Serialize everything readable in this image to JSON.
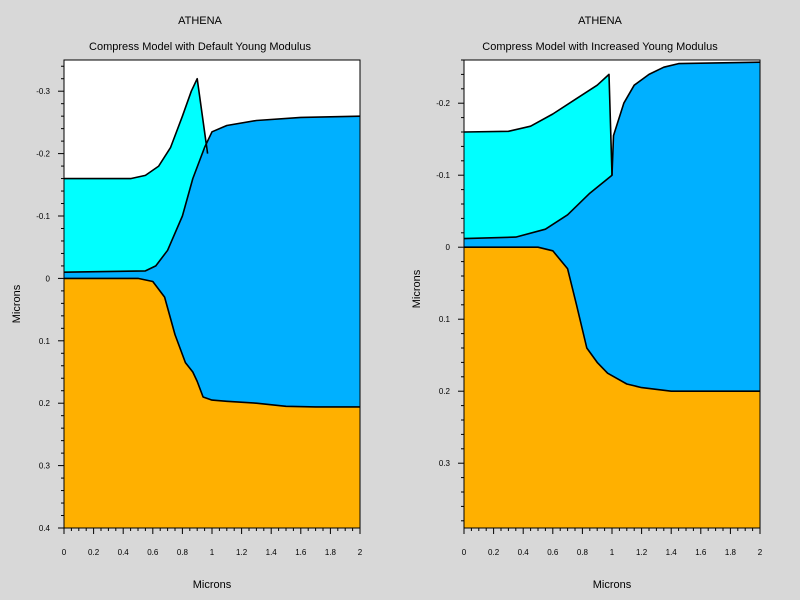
{
  "colors": {
    "background": "#d8d8d8",
    "plot_background": "#ffffff",
    "oxide": "#00ffff",
    "nitride": "#00b0ff",
    "silicon": "#ffb000",
    "boundary": "#000000"
  },
  "chart_data": [
    {
      "type": "area",
      "app": "ATHENA",
      "title": "Compress Model with Default Young Modulus",
      "xlabel": "Microns",
      "ylabel": "Microns",
      "xlim": [
        0,
        2
      ],
      "ylim": [
        -0.35,
        0.4
      ],
      "y_inverted": true,
      "x_ticks": [
        "0",
        "0.2",
        "0.4",
        "0.6",
        "0.8",
        "1",
        "1.2",
        "1.4",
        "1.6",
        "1.8",
        "2"
      ],
      "y_ticks": [
        "-0.3",
        "-0.2",
        "-0.1",
        "0",
        "0.1",
        "0.2",
        "0.3",
        "0.4"
      ],
      "y_tick_values": [
        -0.3,
        -0.2,
        -0.1,
        0,
        0.1,
        0.2,
        0.3,
        0.4
      ],
      "regions": [
        {
          "material": "silicon",
          "color": "#ffb000",
          "top": [
            [
              0,
              0.0
            ],
            [
              0.5,
              0.0
            ],
            [
              0.6,
              0.005
            ],
            [
              0.68,
              0.03
            ],
            [
              0.75,
              0.09
            ],
            [
              0.82,
              0.135
            ],
            [
              0.87,
              0.15
            ],
            [
              0.9,
              0.165
            ],
            [
              0.94,
              0.19
            ],
            [
              1.0,
              0.195
            ],
            [
              1.1,
              0.197
            ],
            [
              1.3,
              0.2
            ],
            [
              1.5,
              0.205
            ],
            [
              1.7,
              0.206
            ],
            [
              2.0,
              0.206
            ]
          ],
          "bottom": 0.4
        },
        {
          "material": "nitride",
          "color": "#00b0ff",
          "top": [
            [
              0,
              -0.01
            ],
            [
              0.55,
              -0.012
            ],
            [
              0.62,
              -0.02
            ],
            [
              0.7,
              -0.045
            ],
            [
              0.8,
              -0.1
            ],
            [
              0.87,
              -0.16
            ],
            [
              0.95,
              -0.21
            ],
            [
              1.0,
              -0.235
            ],
            [
              1.1,
              -0.245
            ],
            [
              1.3,
              -0.253
            ],
            [
              1.6,
              -0.258
            ],
            [
              2.0,
              -0.26
            ]
          ],
          "bottom": [
            [
              0,
              0.0
            ],
            [
              0.5,
              0.0
            ],
            [
              0.6,
              0.005
            ],
            [
              0.68,
              0.03
            ],
            [
              0.75,
              0.09
            ],
            [
              0.82,
              0.135
            ],
            [
              0.87,
              0.15
            ],
            [
              0.9,
              0.165
            ],
            [
              0.94,
              0.19
            ],
            [
              1.0,
              0.195
            ],
            [
              1.1,
              0.197
            ],
            [
              1.3,
              0.2
            ],
            [
              1.5,
              0.205
            ],
            [
              1.7,
              0.206
            ],
            [
              2.0,
              0.206
            ]
          ]
        },
        {
          "material": "oxide",
          "color": "#00ffff",
          "top": [
            [
              0,
              -0.16
            ],
            [
              0.45,
              -0.16
            ],
            [
              0.55,
              -0.165
            ],
            [
              0.64,
              -0.18
            ],
            [
              0.72,
              -0.21
            ],
            [
              0.8,
              -0.26
            ],
            [
              0.86,
              -0.3
            ],
            [
              0.9,
              -0.32
            ],
            [
              0.97,
              -0.2
            ]
          ],
          "bottom": [
            [
              0,
              -0.01
            ],
            [
              0.55,
              -0.012
            ],
            [
              0.62,
              -0.02
            ],
            [
              0.7,
              -0.045
            ],
            [
              0.8,
              -0.1
            ],
            [
              0.87,
              -0.16
            ],
            [
              0.95,
              -0.21
            ],
            [
              0.97,
              -0.2
            ]
          ]
        }
      ]
    },
    {
      "type": "area",
      "app": "ATHENA",
      "title": "Compress Model with Increased Young Modulus",
      "xlabel": "Microns",
      "ylabel": "Microns",
      "xlim": [
        0,
        2
      ],
      "ylim": [
        -0.26,
        0.39
      ],
      "y_inverted": true,
      "x_ticks": [
        "0",
        "0.2",
        "0.4",
        "0.6",
        "0.8",
        "1",
        "1.2",
        "1.4",
        "1.6",
        "1.8",
        "2"
      ],
      "y_ticks": [
        "-0.2",
        "-0.1",
        "0",
        "0.1",
        "0.2",
        "0.3"
      ],
      "y_tick_values": [
        -0.2,
        -0.1,
        0,
        0.1,
        0.2,
        0.3
      ],
      "regions": [
        {
          "material": "silicon",
          "color": "#ffb000",
          "top": [
            [
              0,
              0.0
            ],
            [
              0.5,
              0.0
            ],
            [
              0.6,
              0.005
            ],
            [
              0.7,
              0.03
            ],
            [
              0.76,
              0.08
            ],
            [
              0.83,
              0.14
            ],
            [
              0.9,
              0.16
            ],
            [
              0.97,
              0.175
            ],
            [
              1.1,
              0.19
            ],
            [
              1.2,
              0.195
            ],
            [
              1.4,
              0.2
            ],
            [
              1.6,
              0.2
            ],
            [
              1.8,
              0.2
            ],
            [
              2.0,
              0.2
            ]
          ],
          "bottom": 0.39
        },
        {
          "material": "nitride",
          "color": "#00b0ff",
          "top": [
            [
              0,
              -0.012
            ],
            [
              0.35,
              -0.014
            ],
            [
              0.55,
              -0.025
            ],
            [
              0.7,
              -0.045
            ],
            [
              0.85,
              -0.075
            ],
            [
              1.0,
              -0.1
            ],
            [
              1.01,
              -0.155
            ],
            [
              1.08,
              -0.2
            ],
            [
              1.15,
              -0.225
            ],
            [
              1.25,
              -0.24
            ],
            [
              1.35,
              -0.25
            ],
            [
              1.45,
              -0.255
            ],
            [
              2.0,
              -0.257
            ]
          ],
          "bottom": [
            [
              0,
              0.0
            ],
            [
              0.5,
              0.0
            ],
            [
              0.6,
              0.005
            ],
            [
              0.7,
              0.03
            ],
            [
              0.76,
              0.08
            ],
            [
              0.83,
              0.14
            ],
            [
              0.9,
              0.16
            ],
            [
              0.97,
              0.175
            ],
            [
              1.1,
              0.19
            ],
            [
              1.2,
              0.195
            ],
            [
              1.4,
              0.2
            ],
            [
              1.6,
              0.2
            ],
            [
              1.8,
              0.2
            ],
            [
              2.0,
              0.2
            ]
          ]
        },
        {
          "material": "oxide",
          "color": "#00ffff",
          "top": [
            [
              0,
              -0.16
            ],
            [
              0.3,
              -0.161
            ],
            [
              0.45,
              -0.168
            ],
            [
              0.6,
              -0.185
            ],
            [
              0.75,
              -0.205
            ],
            [
              0.9,
              -0.225
            ],
            [
              0.98,
              -0.24
            ],
            [
              1.0,
              -0.1
            ]
          ],
          "bottom": [
            [
              0,
              -0.012
            ],
            [
              0.35,
              -0.014
            ],
            [
              0.55,
              -0.025
            ],
            [
              0.7,
              -0.045
            ],
            [
              0.85,
              -0.075
            ],
            [
              1.0,
              -0.1
            ]
          ]
        }
      ]
    }
  ]
}
